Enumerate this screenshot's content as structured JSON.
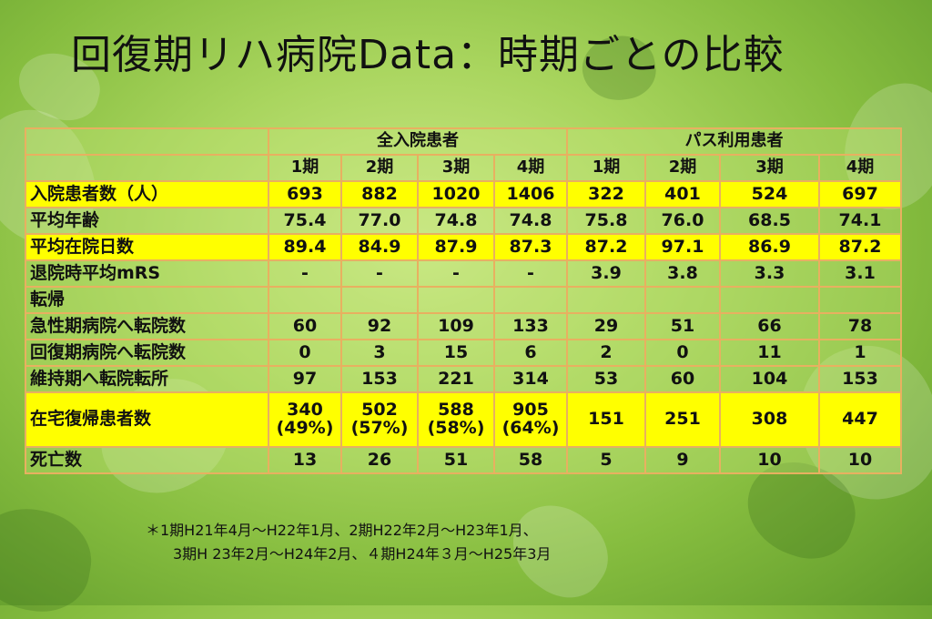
{
  "title": "回復期リハ病院Data：時期ごとの比較",
  "groups": {
    "all": "全入院患者",
    "path": "パス利用患者"
  },
  "periods": [
    "1期",
    "2期",
    "3期",
    "4期"
  ],
  "rows": [
    {
      "label": "入院患者数（人）",
      "highlight": true,
      "values": [
        "693",
        "882",
        "1020",
        "1406",
        "322",
        "401",
        "524",
        "697"
      ]
    },
    {
      "label": "平均年齢",
      "highlight": false,
      "values": [
        "75.4",
        "77.0",
        "74.8",
        "74.8",
        "75.8",
        "76.0",
        "68.5",
        "74.1"
      ]
    },
    {
      "label": "平均在院日数",
      "highlight": true,
      "values": [
        "89.4",
        "84.9",
        "87.9",
        "87.3",
        "87.2",
        "97.1",
        "86.9",
        "87.2"
      ]
    },
    {
      "label": "退院時平均mRS",
      "highlight": false,
      "values": [
        "-",
        "-",
        "-",
        "-",
        "3.9",
        "3.8",
        "3.3",
        "3.1"
      ]
    },
    {
      "label": "転帰",
      "highlight": false,
      "values": [
        "",
        "",
        "",
        "",
        "",
        "",
        "",
        ""
      ]
    },
    {
      "label": "急性期病院へ転院数",
      "highlight": false,
      "values": [
        "60",
        "92",
        "109",
        "133",
        "29",
        "51",
        "66",
        "78"
      ]
    },
    {
      "label": "回復期病院へ転院数",
      "highlight": false,
      "values": [
        "0",
        "3",
        "15",
        "6",
        "2",
        "0",
        "11",
        "1"
      ]
    },
    {
      "label": "維持期へ転院転所",
      "highlight": false,
      "values": [
        "97",
        "153",
        "221",
        "314",
        "53",
        "60",
        "104",
        "153"
      ]
    },
    {
      "label": "在宅復帰患者数",
      "highlight": true,
      "values": [
        "340",
        "502",
        "588",
        "905",
        "151",
        "251",
        "308",
        "447"
      ],
      "pcts": [
        "(49%)",
        "(57%)",
        "(58%)",
        "(64%)"
      ]
    },
    {
      "label": "死亡数",
      "highlight": false,
      "values": [
        "13",
        "26",
        "51",
        "58",
        "5",
        "9",
        "10",
        "10"
      ]
    }
  ],
  "footnote": {
    "line1": "＊1期H21年4月～H22年1月、2期H22年2月～H23年1月、",
    "line2": "3期H 23年2月～H24年2月、４期H24年３月～H25年3月"
  }
}
